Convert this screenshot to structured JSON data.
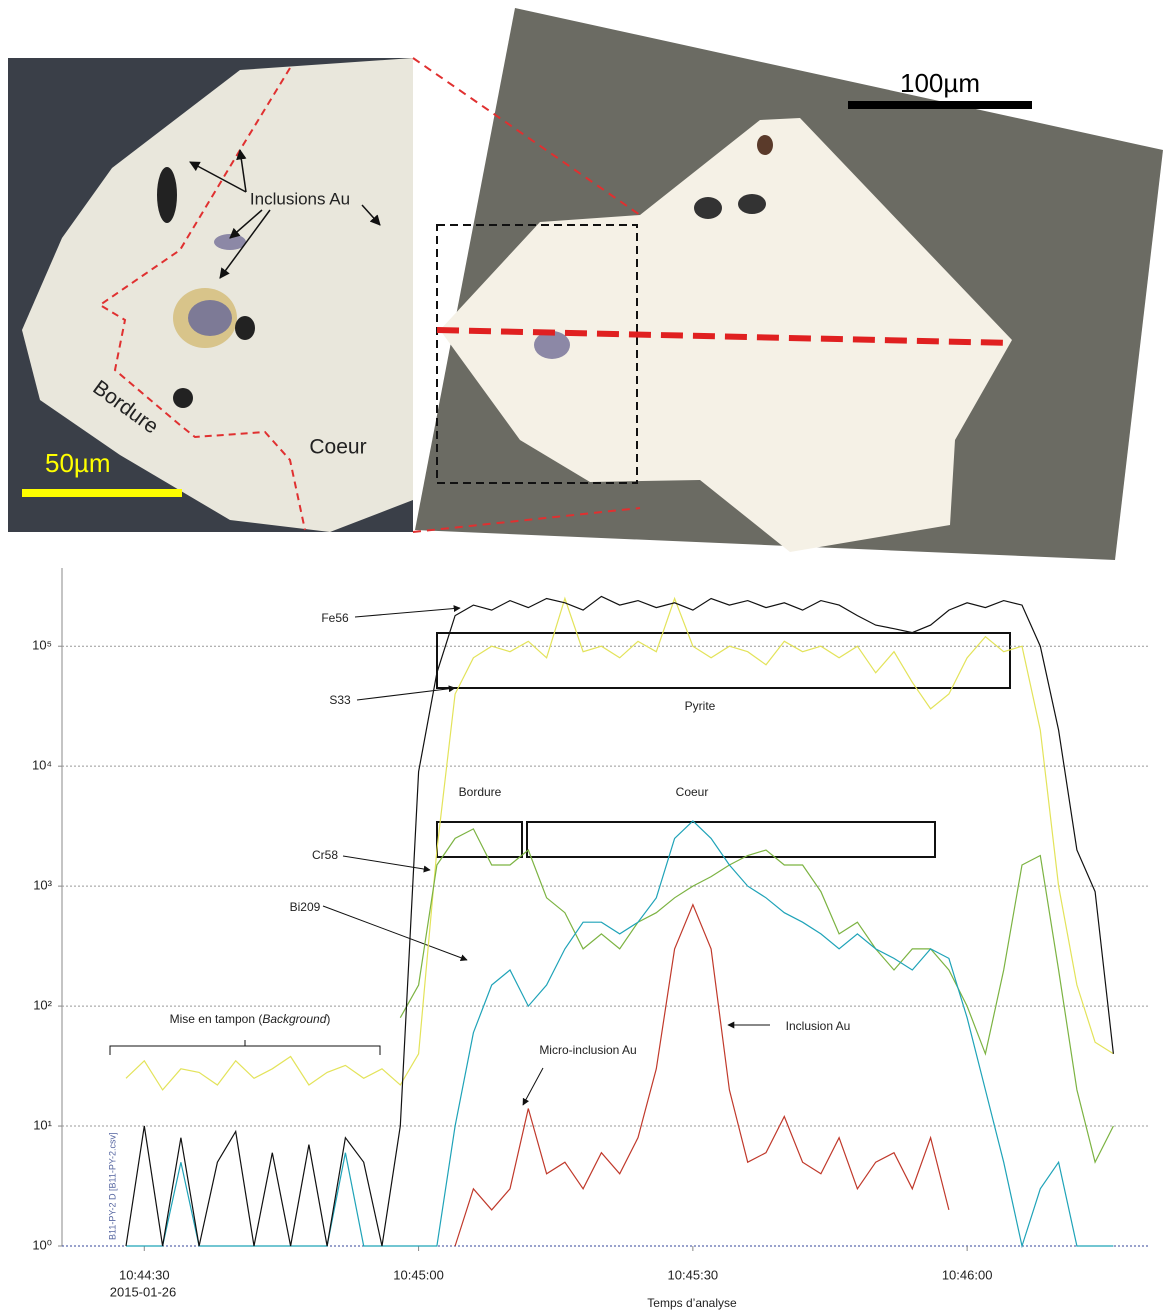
{
  "micrographs": {
    "inclusions": "Inclusions Au",
    "rim": "Bordure",
    "core": "Coeur",
    "scale_left": "50µm",
    "scale_right": "100µm"
  },
  "chart_data": {
    "type": "line",
    "log_scale": true,
    "grid": true,
    "x": [
      "10:44:28",
      "10:44:30",
      "10:44:32",
      "10:44:34",
      "10:44:36",
      "10:44:38",
      "10:44:40",
      "10:44:42",
      "10:44:44",
      "10:44:46",
      "10:44:48",
      "10:44:50",
      "10:44:52",
      "10:44:54",
      "10:44:56",
      "10:44:58",
      "10:45:00",
      "10:45:02",
      "10:45:04",
      "10:45:06",
      "10:45:08",
      "10:45:10",
      "10:45:12",
      "10:45:14",
      "10:45:16",
      "10:45:18",
      "10:45:20",
      "10:45:22",
      "10:45:24",
      "10:45:26",
      "10:45:28",
      "10:45:30",
      "10:45:32",
      "10:45:34",
      "10:45:36",
      "10:45:38",
      "10:45:40",
      "10:45:42",
      "10:45:44",
      "10:45:46",
      "10:45:48",
      "10:45:50",
      "10:45:52",
      "10:45:54",
      "10:45:56",
      "10:45:58",
      "10:46:00",
      "10:46:02",
      "10:46:04",
      "10:46:06",
      "10:46:08",
      "10:46:10",
      "10:46:12",
      "10:46:14",
      "10:46:16"
    ],
    "series": [
      {
        "name": "S33",
        "color": "#e3e35a",
        "values": [
          25,
          35,
          20,
          30,
          28,
          22,
          35,
          25,
          30,
          38,
          22,
          28,
          32,
          25,
          30,
          22,
          40,
          2000,
          40000,
          80000,
          100000,
          90000,
          110000,
          80000,
          250000,
          90000,
          100000,
          80000,
          110000,
          90000,
          250000,
          100000,
          80000,
          100000,
          90000,
          70000,
          110000,
          90000,
          100000,
          80000,
          100000,
          60000,
          90000,
          50000,
          30000,
          40000,
          80000,
          120000,
          90000,
          100000,
          20000,
          1000,
          150,
          50,
          40
        ]
      },
      {
        "name": "Cr58",
        "color": "#7cb342",
        "values": [
          null,
          null,
          null,
          null,
          null,
          null,
          null,
          null,
          null,
          null,
          null,
          null,
          null,
          null,
          null,
          80,
          150,
          1500,
          2500,
          3000,
          1500,
          1500,
          2000,
          800,
          600,
          300,
          400,
          300,
          500,
          600,
          800,
          1000,
          1200,
          1500,
          1800,
          2000,
          1500,
          1500,
          900,
          400,
          500,
          300,
          200,
          300,
          300,
          200,
          100,
          40,
          200,
          1500,
          1800,
          200,
          20,
          5,
          10
        ]
      },
      {
        "name": "Bi209",
        "color": "#1fa3b8",
        "values": [
          1,
          1,
          1,
          5,
          1,
          1,
          1,
          1,
          1,
          1,
          1,
          1,
          6,
          1,
          1,
          1,
          1,
          1,
          10,
          60,
          150,
          200,
          100,
          150,
          300,
          500,
          500,
          400,
          500,
          800,
          2500,
          3500,
          2500,
          1500,
          1000,
          800,
          600,
          500,
          400,
          300,
          400,
          300,
          250,
          200,
          300,
          250,
          80,
          20,
          5,
          1,
          3,
          5,
          1,
          1,
          1
        ]
      },
      {
        "color": "#c0392b",
        "values": [
          null,
          null,
          null,
          null,
          null,
          null,
          null,
          null,
          null,
          null,
          null,
          null,
          null,
          null,
          null,
          null,
          null,
          null,
          1,
          3,
          2,
          3,
          14,
          4,
          5,
          3,
          6,
          4,
          8,
          30,
          300,
          700,
          300,
          20,
          5,
          6,
          12,
          5,
          4,
          8,
          3,
          5,
          6,
          3,
          8,
          2,
          null,
          null,
          null,
          null,
          null,
          null,
          null,
          null,
          null
        ]
      },
      {
        "name": "Fe56",
        "color": "#111111",
        "values": [
          1,
          10,
          1,
          8,
          1,
          5,
          9,
          1,
          6,
          1,
          7,
          1,
          8,
          5,
          1,
          10,
          9000,
          60000,
          180000,
          220000,
          200000,
          240000,
          210000,
          250000,
          230000,
          200000,
          260000,
          220000,
          240000,
          210000,
          230000,
          200000,
          250000,
          220000,
          240000,
          210000,
          230000,
          200000,
          240000,
          220000,
          180000,
          150000,
          140000,
          130000,
          150000,
          200000,
          230000,
          210000,
          240000,
          220000,
          100000,
          20000,
          2000,
          900,
          40
        ]
      }
    ],
    "xlim": [
      "10:44:21",
      "10:46:20"
    ],
    "xticks": [
      "10:44:30",
      "10:45:00",
      "10:45:30",
      "10:46:00"
    ],
    "ylim": [
      1,
      400000
    ],
    "yticks": [
      {
        "value": 1,
        "label": "10⁰"
      },
      {
        "value": 10,
        "label": "10¹"
      },
      {
        "value": 100,
        "label": "10²"
      },
      {
        "value": 1000,
        "label": "10³"
      },
      {
        "value": 10000,
        "label": "10⁴"
      },
      {
        "value": 100000,
        "label": "10⁵"
      }
    ],
    "x_label": "Temps d’analyse",
    "date_label": "2015-01-26",
    "file_label": "B11-PY-2 D [B11-PY-2.csv]",
    "annotations": {
      "pyrite": "Pyrite",
      "rim": "Bordure",
      "core": "Coeur",
      "background_a": "Mise en tampon (",
      "background_b": "Background",
      "background_c": ")",
      "micro": "Micro-inclusion Au",
      "inclusion": "Inclusion Au"
    }
  }
}
